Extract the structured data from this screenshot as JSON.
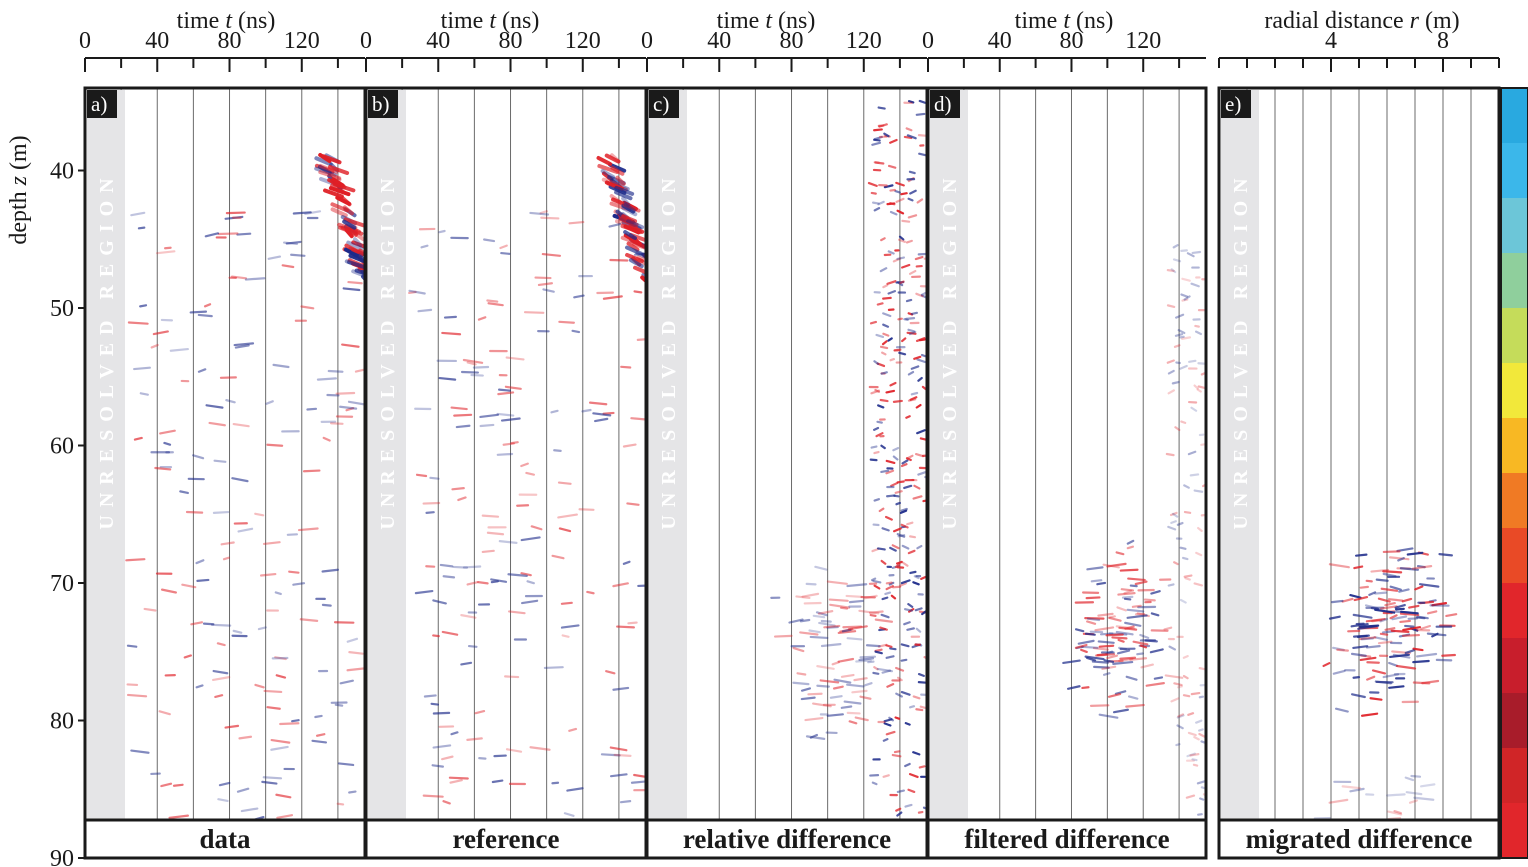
{
  "chart_data": {
    "type": "heatmap",
    "y_axis": {
      "label": "depth z (m)",
      "label_parts": [
        "depth ",
        "z",
        " (m)"
      ],
      "range": [
        34,
        90
      ],
      "ticks": [
        40,
        50,
        60,
        70,
        80,
        90
      ]
    },
    "unresolved_label": "UNRESOLVED REGION",
    "colorbar": {
      "colors": [
        "#29a9e0",
        "#3bb7ea",
        "#6cc6d8",
        "#8fcf9c",
        "#c5dc5a",
        "#f2e83a",
        "#f8b823",
        "#f07a24",
        "#e94a26",
        "#e1262b",
        "#c81e2c",
        "#a81c2a",
        "#d02527",
        "#e1262b"
      ]
    },
    "panels": [
      {
        "label": "a)",
        "caption": "data",
        "x_axis": {
          "label_parts": [
            "time ",
            "t",
            " (ns)"
          ],
          "range": [
            0,
            155
          ],
          "ticks": [
            0,
            40,
            80,
            120
          ]
        },
        "unresolved": true,
        "events": [
          {
            "kind": "steep",
            "z": [
              39,
              48
            ],
            "t": [
              130,
              155
            ],
            "strength": 1.0
          },
          {
            "kind": "band",
            "z": [
              43,
              89
            ],
            "t": [
              25,
              155
            ],
            "strength": 0.6
          }
        ]
      },
      {
        "label": "b)",
        "caption": "reference",
        "x_axis": {
          "label_parts": [
            "time ",
            "t",
            " (ns)"
          ],
          "range": [
            0,
            155
          ],
          "ticks": [
            0,
            40,
            80,
            120
          ]
        },
        "unresolved": true,
        "events": [
          {
            "kind": "steep",
            "z": [
              39,
              48
            ],
            "t": [
              130,
              155
            ],
            "strength": 1.0
          },
          {
            "kind": "band",
            "z": [
              43,
              89
            ],
            "t": [
              25,
              155
            ],
            "strength": 0.6
          }
        ]
      },
      {
        "label": "c)",
        "caption": "relative difference",
        "x_axis": {
          "label_parts": [
            "time ",
            "t",
            " (ns)"
          ],
          "range": [
            0,
            155
          ],
          "ticks": [
            0,
            40,
            80,
            120
          ]
        },
        "unresolved": true,
        "events": [
          {
            "kind": "noise",
            "z": [
              35,
              89
            ],
            "t": [
              125,
              155
            ],
            "strength": 0.9
          },
          {
            "kind": "blob",
            "z": [
              68,
              82
            ],
            "t": [
              70,
              140
            ],
            "strength": 0.5
          }
        ]
      },
      {
        "label": "d)",
        "caption": "filtered difference",
        "x_axis": {
          "label_parts": [
            "time ",
            "t",
            " (ns)"
          ],
          "range": [
            0,
            155
          ],
          "ticks": [
            0,
            40,
            80,
            120
          ]
        },
        "unresolved": true,
        "events": [
          {
            "kind": "blob",
            "z": [
              66,
              80
            ],
            "t": [
              75,
              140
            ],
            "strength": 0.7
          },
          {
            "kind": "noise",
            "z": [
              45,
              89
            ],
            "t": [
              135,
              155
            ],
            "strength": 0.3
          }
        ]
      },
      {
        "label": "e)",
        "caption": "migrated difference",
        "x_axis": {
          "label_parts": [
            "radial distance ",
            "r",
            " (m)"
          ],
          "range": [
            0,
            10
          ],
          "ticks": [
            4,
            8
          ]
        },
        "unresolved": true,
        "events": [
          {
            "kind": "blob",
            "z": [
              66,
              81
            ],
            "r": [
              3.5,
              8.5
            ],
            "strength": 0.9
          },
          {
            "kind": "fan",
            "z": [
              84,
              89
            ],
            "r": [
              3,
              9
            ],
            "strength": 0.3
          }
        ]
      }
    ]
  }
}
